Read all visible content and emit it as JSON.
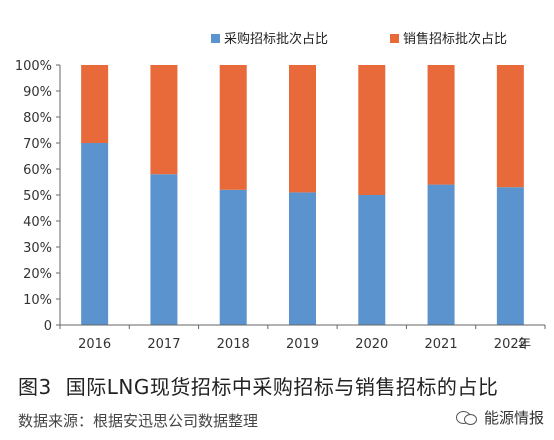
{
  "chart_data": {
    "type": "bar",
    "stacked": true,
    "categories": [
      "2016",
      "2017",
      "2018",
      "2019",
      "2020",
      "2021",
      "2022"
    ],
    "series": [
      {
        "name": "采购招标批次占比",
        "color": "#5b93cf",
        "values": [
          70,
          58,
          52,
          51,
          50,
          54,
          53
        ]
      },
      {
        "name": "销售招标批次占比",
        "color": "#e8693a",
        "values": [
          30,
          42,
          48,
          49,
          50,
          46,
          47
        ]
      }
    ],
    "xlabel": "年",
    "ylabel": "",
    "ylim": [
      0,
      100
    ],
    "yticks": [
      "0",
      "10%",
      "20%",
      "30%",
      "40%",
      "50%",
      "60%",
      "70%",
      "80%",
      "90%",
      "100%"
    ],
    "legend_position": "top-right",
    "grid": false
  },
  "caption": {
    "figure_label": "图3",
    "title": "国际LNG现货招标中采购招标与销售招标的占比"
  },
  "source": "数据来源：根据安迅思公司数据整理",
  "brand": {
    "icon": "wechat-icon",
    "name": "能源情报"
  }
}
